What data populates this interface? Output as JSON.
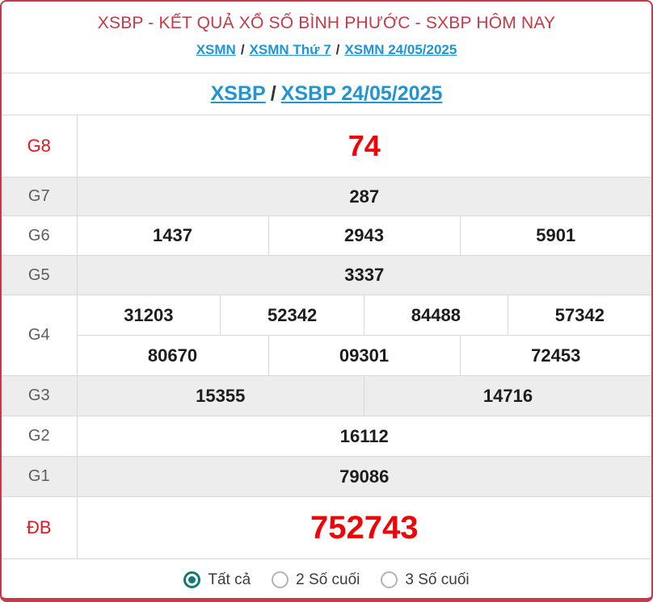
{
  "page": {
    "title": "XSBP - KẾT QUẢ XỔ SỐ BÌNH PHƯỚC - SXBP HÔM NAY",
    "breadcrumb": {
      "separator": "/",
      "items": [
        {
          "label": "XSMN"
        },
        {
          "label": "XSMN Thứ 7"
        },
        {
          "label": "XSMN 24/05/2025"
        }
      ]
    },
    "subtitle": {
      "separator": "/",
      "items": [
        {
          "label": "XSBP"
        },
        {
          "label": "XSBP 24/05/2025"
        }
      ]
    }
  },
  "results_table": {
    "rows": [
      {
        "prize": "G8",
        "highlight": true,
        "cells": [
          "74"
        ]
      },
      {
        "prize": "G7",
        "highlight": false,
        "cells": [
          "287"
        ]
      },
      {
        "prize": "G6",
        "highlight": false,
        "cells": [
          "1437",
          "2943",
          "5901"
        ]
      },
      {
        "prize": "G5",
        "highlight": false,
        "cells": [
          "3337"
        ]
      },
      {
        "prize": "G4",
        "highlight": false,
        "lines": [
          [
            "31203",
            "52342",
            "84488",
            "57342"
          ],
          [
            "80670",
            "09301",
            "72453"
          ]
        ]
      },
      {
        "prize": "G3",
        "highlight": false,
        "cells": [
          "15355",
          "14716"
        ]
      },
      {
        "prize": "G2",
        "highlight": false,
        "cells": [
          "16112"
        ]
      },
      {
        "prize": "G1",
        "highlight": false,
        "cells": [
          "79086"
        ]
      },
      {
        "prize": "ĐB",
        "highlight": true,
        "cells": [
          "752743"
        ]
      }
    ]
  },
  "filter": {
    "options": [
      {
        "label": "Tất cả",
        "selected": true
      },
      {
        "label": "2 Số cuối",
        "selected": false
      },
      {
        "label": "3 Số cuối",
        "selected": false
      }
    ]
  },
  "colors": {
    "card_border_red": "#c5394b",
    "header_red": "#cb3747",
    "link_blue": "#2095d3",
    "value_red": "#ef0505",
    "value_dark": "#1c1c1c",
    "row_alt_gray": "#ededed",
    "cell_border": "#d8d8d8",
    "radio_teal": "#0e7c74"
  }
}
